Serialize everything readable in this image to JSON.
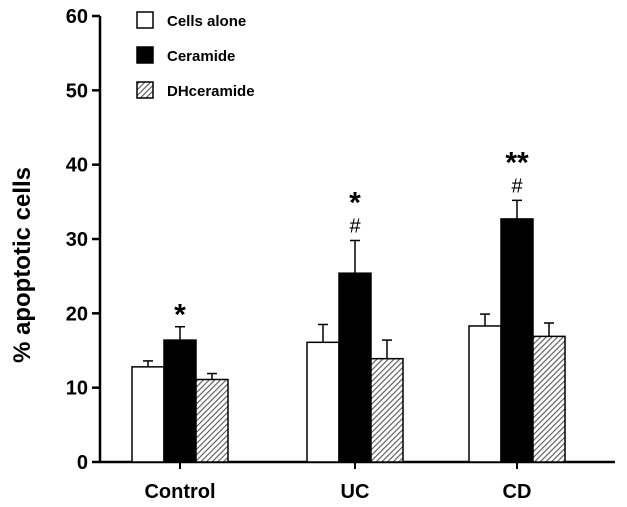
{
  "chart_data": {
    "type": "bar",
    "categories": [
      "Control",
      "UC",
      "CD"
    ],
    "ylabel": "% apoptotic cells",
    "ylim": [
      0,
      60
    ],
    "yticks": [
      0,
      10,
      20,
      30,
      40,
      50,
      60
    ],
    "grid": false,
    "legend_position": "top-left",
    "series": [
      {
        "name": "Cells alone",
        "fill": "white",
        "values": [
          12.8,
          16.1,
          18.3
        ],
        "errors": [
          0.8,
          2.4,
          1.6
        ]
      },
      {
        "name": "Ceramide",
        "fill": "black",
        "values": [
          16.4,
          25.4,
          32.7
        ],
        "errors": [
          1.8,
          4.4,
          2.5
        ]
      },
      {
        "name": "DHceramide",
        "fill": "hatched",
        "values": [
          11.1,
          13.9,
          16.9
        ],
        "errors": [
          0.8,
          2.5,
          1.8
        ]
      }
    ],
    "annotations": [
      {
        "category": "Control",
        "series": "Ceramide",
        "stars": "*",
        "hash": ""
      },
      {
        "category": "UC",
        "series": "Ceramide",
        "stars": "*",
        "hash": "#"
      },
      {
        "category": "CD",
        "series": "Ceramide",
        "stars": "**",
        "hash": "#"
      }
    ]
  },
  "colors": {
    "axis": "#000000",
    "bar_dark": "#000000",
    "bar_light": "#ffffff",
    "hatch": "#555555"
  }
}
